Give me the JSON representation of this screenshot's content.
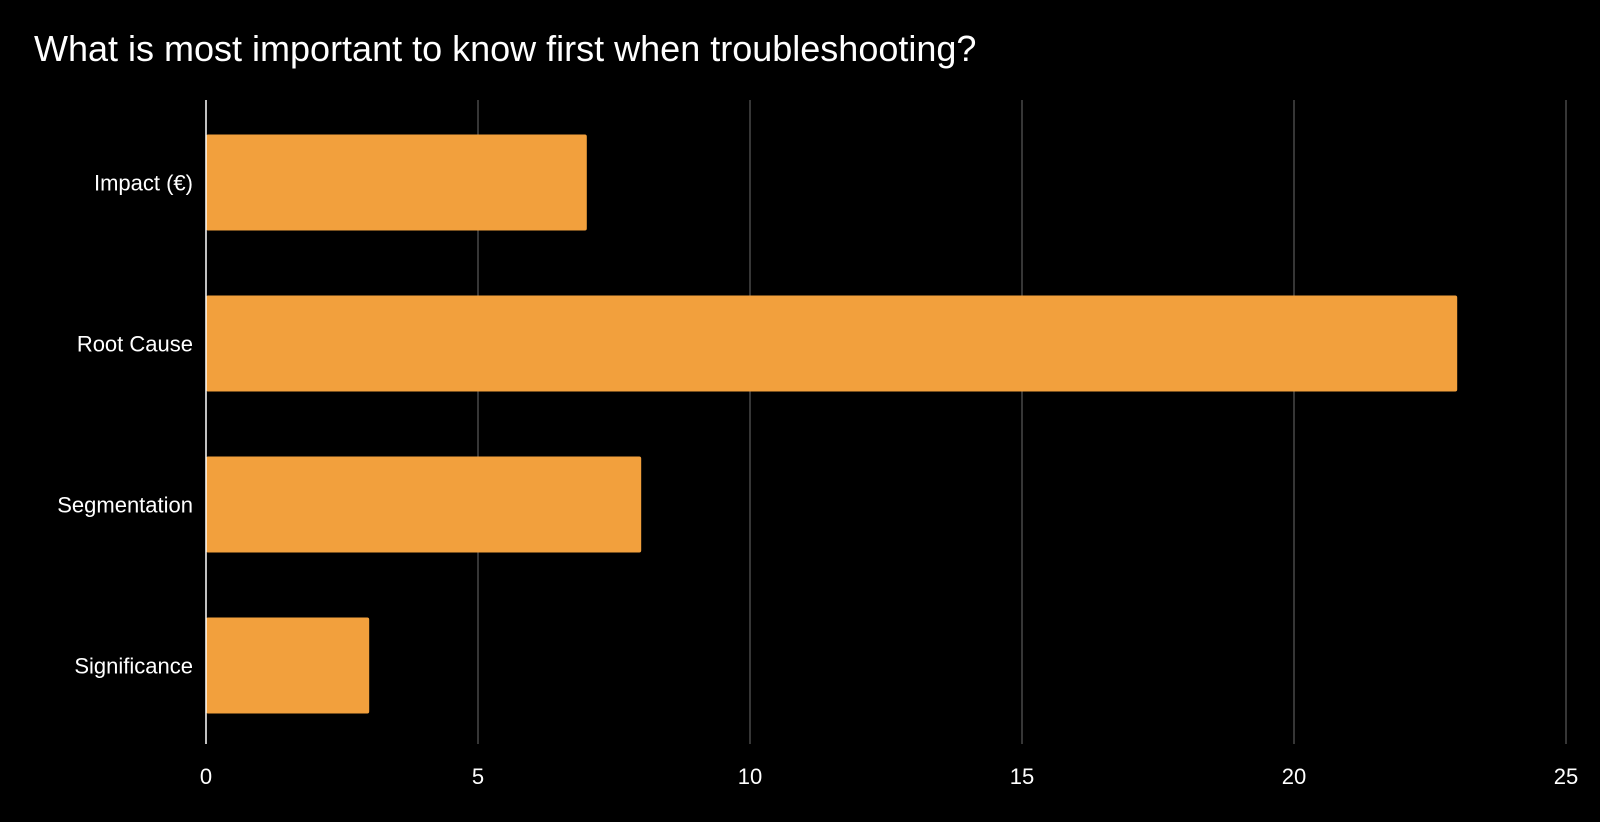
{
  "chart_data": {
    "type": "bar",
    "orientation": "horizontal",
    "title": "What is most important to know first when troubleshooting?",
    "categories": [
      "Impact (€)",
      "Root Cause",
      "Segmentation",
      "Significance"
    ],
    "values": [
      7,
      23,
      8,
      3
    ],
    "xlabel": "",
    "ylabel": "",
    "xlim": [
      0,
      25
    ],
    "x_ticks": [
      0,
      5,
      10,
      15,
      20,
      25
    ],
    "x_tick_labels": [
      "0",
      "5",
      "10",
      "15",
      "20",
      "25"
    ],
    "grid": "vertical",
    "legend": "none",
    "bar_color": "#F2A03D",
    "background_color": "#000000",
    "text_color": "#FFFFFF",
    "grid_color": "#5A5A5A"
  }
}
